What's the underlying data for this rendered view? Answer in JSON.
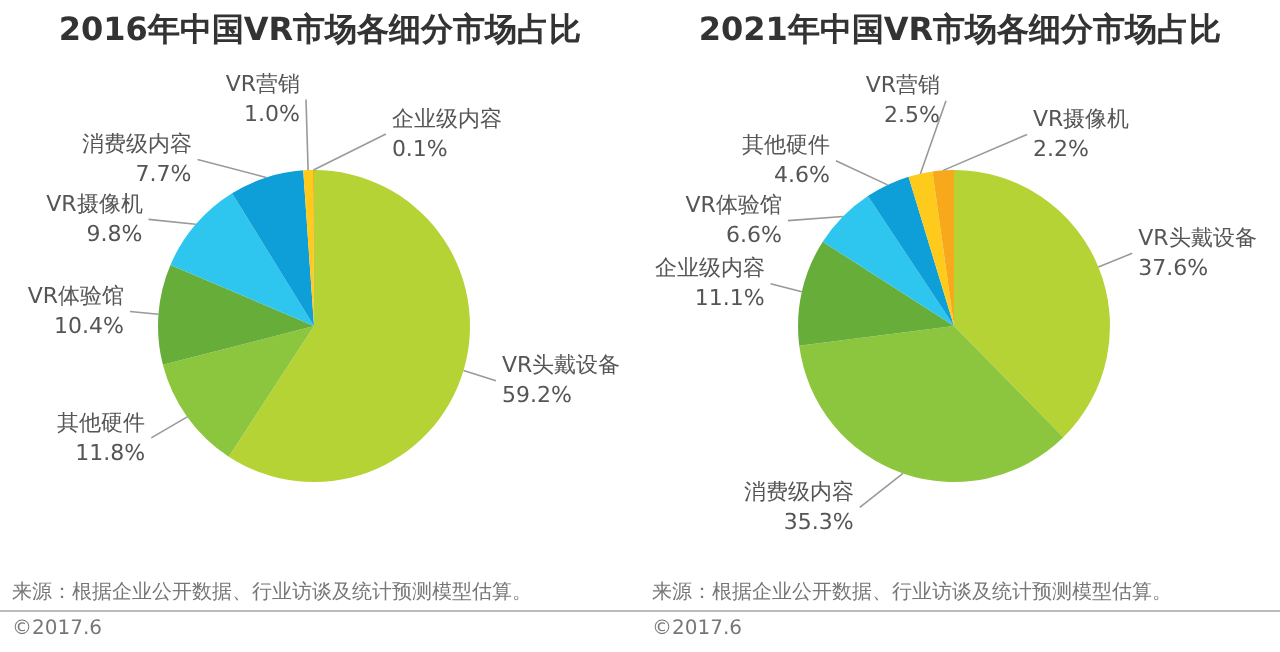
{
  "chart_data": [
    {
      "type": "pie",
      "title": "2016年中国VR市场各细分市场占比",
      "categories": [
        "VR头戴设备",
        "其他硬件",
        "VR体验馆",
        "VR摄像机",
        "消费级内容",
        "VR营销",
        "企业级内容"
      ],
      "values": [
        59.2,
        11.8,
        10.4,
        9.8,
        7.7,
        1.0,
        0.1
      ],
      "colors": [
        "#b5d334",
        "#8cc63e",
        "#66ad3a",
        "#2ec5ef",
        "#0e9fd8",
        "#fecb1c",
        "#f7a81b"
      ],
      "value_labels": [
        "59.2%",
        "11.8%",
        "10.4%",
        "9.8%",
        "7.7%",
        "1.0%",
        "0.1%"
      ],
      "legend": false,
      "annotations": [
        "来源：根据企业公开数据、行业访谈及统计预测模型估算。",
        "©2017.6"
      ]
    },
    {
      "type": "pie",
      "title": "2021年中国VR市场各细分市场占比",
      "categories": [
        "VR头戴设备",
        "消费级内容",
        "企业级内容",
        "VR体验馆",
        "其他硬件",
        "VR营销",
        "VR摄像机"
      ],
      "values": [
        37.6,
        35.3,
        11.1,
        6.6,
        4.6,
        2.5,
        2.2
      ],
      "colors": [
        "#b5d334",
        "#8cc63e",
        "#66ad3a",
        "#2ec5ef",
        "#0e9fd8",
        "#fecb1c",
        "#f7a81b"
      ],
      "value_labels": [
        "37.6%",
        "35.3%",
        "11.1%",
        "6.6%",
        "4.6%",
        "2.5%",
        "2.2%"
      ],
      "legend": false,
      "annotations": [
        "来源：根据企业公开数据、行业访谈及统计预测模型估算。",
        "©2017.6"
      ]
    }
  ]
}
